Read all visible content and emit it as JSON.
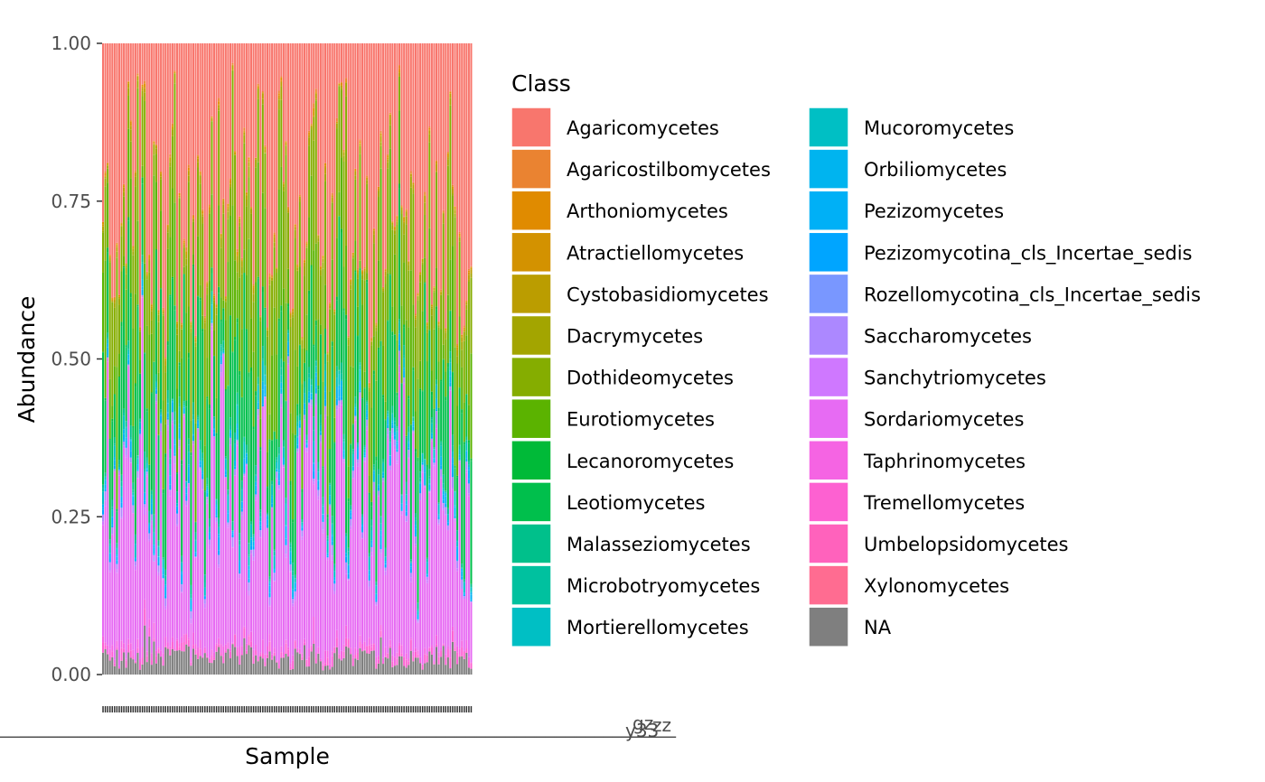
{
  "chart_data": {
    "type": "bar",
    "stacked": true,
    "xlabel": "Sample",
    "ylabel": "Abundance",
    "ylim": [
      0,
      1
    ],
    "y_ticks": [
      "0.00",
      "0.25",
      "0.50",
      "0.75",
      "1.00"
    ],
    "y_tick_values": [
      0,
      0.25,
      0.5,
      0.75,
      1.0
    ],
    "n_samples": 160,
    "x_tick_labels_overlapping": true,
    "x_tick_label_fragments": [
      "zz",
      "gz",
      "y33"
    ],
    "legend": {
      "title": "Class",
      "placement": "right",
      "columns": 2
    },
    "series": [
      {
        "name": "Agaricomycetes",
        "color": "#F8766D"
      },
      {
        "name": "Agaricostilbomycetes",
        "color": "#EA8331"
      },
      {
        "name": "Arthoniomycetes",
        "color": "#E08B00"
      },
      {
        "name": "Atractiellomycetes",
        "color": "#D39200"
      },
      {
        "name": "Cystobasidiomycetes",
        "color": "#BB9D00"
      },
      {
        "name": "Dacrymycetes",
        "color": "#A3A500"
      },
      {
        "name": "Dothideomycetes",
        "color": "#85AD00"
      },
      {
        "name": "Eurotiomycetes",
        "color": "#5BB300"
      },
      {
        "name": "Lecanoromycetes",
        "color": "#00BA38"
      },
      {
        "name": "Leotiomycetes",
        "color": "#00BF4C"
      },
      {
        "name": "Malasseziomycetes",
        "color": "#00C08B"
      },
      {
        "name": "Microbotryomycetes",
        "color": "#00C19F"
      },
      {
        "name": "Mortierellomycetes",
        "color": "#00BFC4"
      },
      {
        "name": "Mucoromycetes",
        "color": "#00BFC4"
      },
      {
        "name": "Orbiliomycetes",
        "color": "#00B4EF"
      },
      {
        "name": "Pezizomycetes",
        "color": "#00B0F6"
      },
      {
        "name": "Pezizomycotina_cls_Incertae_sedis",
        "color": "#00A5FF"
      },
      {
        "name": "Rozellomycotina_cls_Incertae_sedis",
        "color": "#7997FF"
      },
      {
        "name": "Saccharomycetes",
        "color": "#AC88FF"
      },
      {
        "name": "Sanchytriomycetes",
        "color": "#CF78FF"
      },
      {
        "name": "Sordariomycetes",
        "color": "#E76BF3"
      },
      {
        "name": "Taphrinomycetes",
        "color": "#F564E3"
      },
      {
        "name": "Tremellomycetes",
        "color": "#FD61D1"
      },
      {
        "name": "Umbelopsidomycetes",
        "color": "#FF62BC"
      },
      {
        "name": "Xylonomycetes",
        "color": "#FF6C91"
      },
      {
        "name": "NA",
        "color": "#7F7F7F"
      }
    ],
    "sample_profile_approx": {
      "NA_mean": 0.03,
      "Sordariomycetes_mean": 0.2,
      "Leotiomycetes_mean": 0.14,
      "Eurotiomycetes_mean": 0.1,
      "Dothideomycetes_mean": 0.1,
      "Agaricomycetes_mean": 0.3
    }
  }
}
